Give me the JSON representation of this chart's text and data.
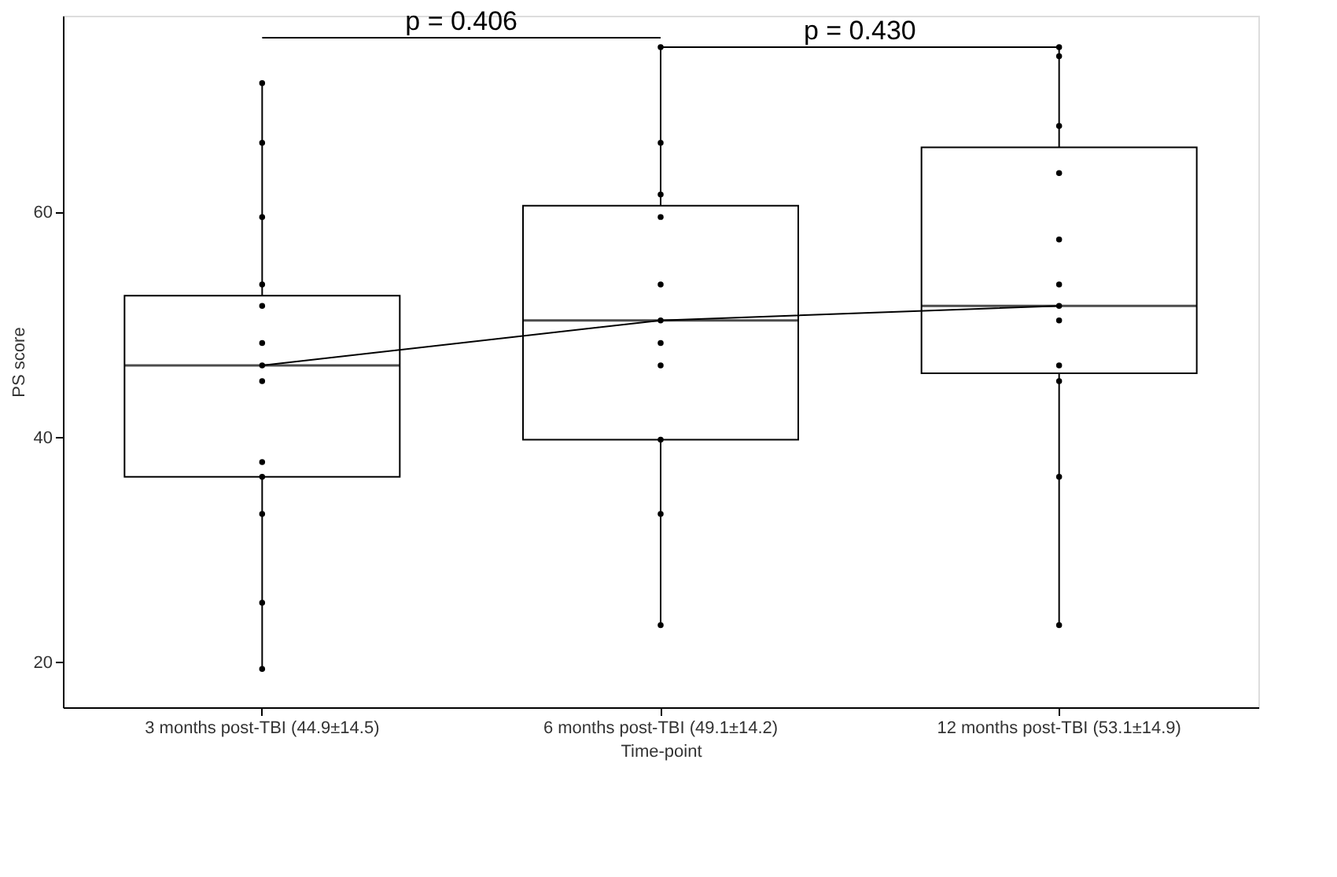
{
  "chart_data": {
    "type": "box",
    "xlabel": "Time-point",
    "ylabel": "PS score",
    "categories": [
      "3 months post-TBI  (44.9±14.5)",
      "6 months post-TBI  (49.1±14.2)",
      "12 months post-TBI  (53.1±14.9)"
    ],
    "boxes": [
      {
        "low": 19.4,
        "q1": 36.5,
        "median": 46.4,
        "q3": 52.6,
        "high": 71.5
      },
      {
        "low": 23.3,
        "q1": 39.8,
        "median": 50.4,
        "q3": 60.6,
        "high": 74.7
      },
      {
        "low": 23.3,
        "q1": 45.7,
        "median": 51.7,
        "q3": 65.8,
        "high": 74.7
      }
    ],
    "series": [
      {
        "type": "scatter",
        "color": "#000000",
        "x": [
          "3 months post-TBI  (44.9±14.5)",
          "3 months post-TBI  (44.9±14.5)",
          "3 months post-TBI  (44.9±14.5)",
          "3 months post-TBI  (44.9±14.5)",
          "3 months post-TBI  (44.9±14.5)",
          "3 months post-TBI  (44.9±14.5)",
          "3 months post-TBI  (44.9±14.5)",
          "3 months post-TBI  (44.9±14.5)",
          "3 months post-TBI  (44.9±14.5)",
          "3 months post-TBI  (44.9±14.5)",
          "3 months post-TBI  (44.9±14.5)",
          "3 months post-TBI  (44.9±14.5)",
          "3 months post-TBI  (44.9±14.5)",
          "6 months post-TBI  (49.1±14.2)",
          "6 months post-TBI  (49.1±14.2)",
          "6 months post-TBI  (49.1±14.2)",
          "6 months post-TBI  (49.1±14.2)",
          "6 months post-TBI  (49.1±14.2)",
          "6 months post-TBI  (49.1±14.2)",
          "6 months post-TBI  (49.1±14.2)",
          "6 months post-TBI  (49.1±14.2)",
          "6 months post-TBI  (49.1±14.2)",
          "6 months post-TBI  (49.1±14.2)",
          "6 months post-TBI  (49.1±14.2)",
          "12 months post-TBI  (53.1±14.9)",
          "12 months post-TBI  (53.1±14.9)",
          "12 months post-TBI  (53.1±14.9)",
          "12 months post-TBI  (53.1±14.9)",
          "12 months post-TBI  (53.1±14.9)",
          "12 months post-TBI  (53.1±14.9)",
          "12 months post-TBI  (53.1±14.9)",
          "12 months post-TBI  (53.1±14.9)",
          "12 months post-TBI  (53.1±14.9)",
          "12 months post-TBI  (53.1±14.9)",
          "12 months post-TBI  (53.1±14.9)",
          "12 months post-TBI  (53.1±14.9)"
        ],
        "values": [
          71.5,
          66.2,
          59.6,
          53.6,
          51.7,
          48.4,
          46.4,
          45.0,
          37.8,
          36.5,
          33.2,
          25.3,
          19.4,
          74.7,
          66.2,
          61.6,
          59.6,
          53.6,
          50.4,
          48.4,
          46.4,
          39.8,
          33.2,
          23.3,
          74.7,
          73.9,
          67.7,
          63.5,
          57.6,
          53.6,
          51.7,
          50.4,
          46.4,
          45.0,
          36.5,
          23.3
        ]
      },
      {
        "type": "line",
        "color": "#000000",
        "marker": "none",
        "values": [
          46.4,
          50.4,
          51.7
        ]
      }
    ],
    "ylim": [
      16,
      77.5
    ],
    "yticks": [
      20,
      40,
      60
    ],
    "grid": false,
    "marker": "circle",
    "annotations": [
      "p = 0.406",
      "p = 0.430"
    ]
  }
}
